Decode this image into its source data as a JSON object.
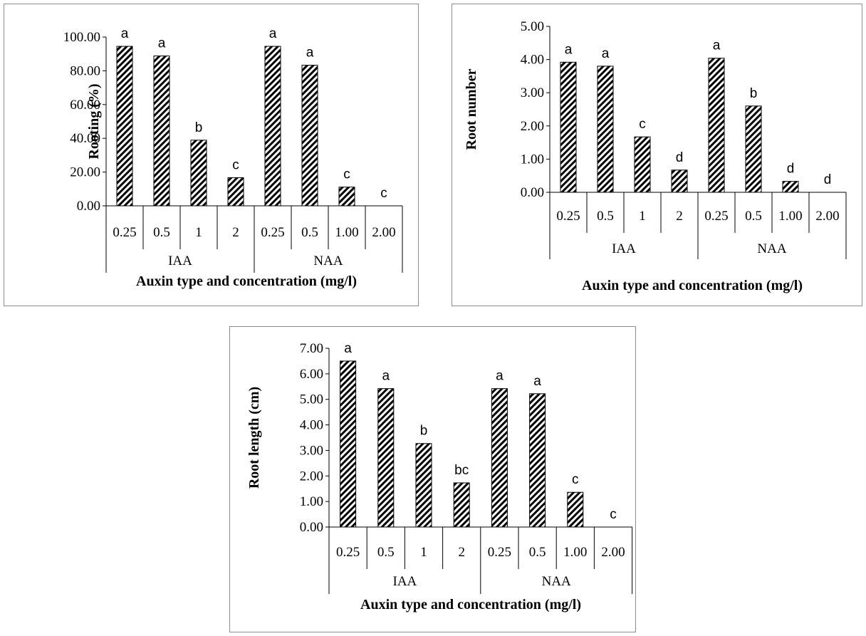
{
  "colors": {
    "bar_stroke": "#000000",
    "hatch": "#000000",
    "bar_fill": "#ffffff",
    "axis": "#000000",
    "frame": "#8c8c8c"
  },
  "chart_data": [
    {
      "type": "bar",
      "ylabel": "Rooting (%)",
      "xlabel": "Auxin type and concentration (mg/l)",
      "ylim": [
        0,
        100
      ],
      "yticks": [
        "0.00",
        "20.00",
        "40.00",
        "60.00",
        "80.00",
        "100.00"
      ],
      "tick_values": [
        0,
        20,
        40,
        60,
        80,
        100
      ],
      "categories": [
        "0.25",
        "0.5",
        "1",
        "2",
        "0.25",
        "0.5",
        "1.00",
        "2.00"
      ],
      "groups": [
        {
          "label": "IAA",
          "count": 4
        },
        {
          "label": "NAA",
          "count": 4
        }
      ],
      "values": [
        94.5,
        88.8,
        38.9,
        16.7,
        94.5,
        83.3,
        11.1,
        0
      ],
      "letters": [
        "a",
        "a",
        "b",
        "c",
        "a",
        "a",
        "c",
        "c"
      ],
      "grid": false,
      "legend": "none"
    },
    {
      "type": "bar",
      "ylabel": "Root number",
      "xlabel": "Auxin type and concentration (mg/l)",
      "ylim": [
        0,
        5
      ],
      "yticks": [
        "0.00",
        "1.00",
        "2.00",
        "3.00",
        "4.00",
        "5.00"
      ],
      "tick_values": [
        0,
        1,
        2,
        3,
        4,
        5
      ],
      "categories": [
        "0.25",
        "0.5",
        "1",
        "2",
        "0.25",
        "0.5",
        "1.00",
        "2.00"
      ],
      "groups": [
        {
          "label": "IAA",
          "count": 4
        },
        {
          "label": "NAA",
          "count": 4
        }
      ],
      "values": [
        3.92,
        3.8,
        1.67,
        0.67,
        4.04,
        2.6,
        0.33,
        0
      ],
      "letters": [
        "a",
        "a",
        "c",
        "d",
        "a",
        "b",
        "d",
        "d"
      ],
      "grid": false,
      "legend": "none"
    },
    {
      "type": "bar",
      "ylabel": "Root length (cm)",
      "xlabel": "Auxin type and concentration (mg/l)",
      "ylim": [
        0,
        7
      ],
      "yticks": [
        "0.00",
        "1.00",
        "2.00",
        "3.00",
        "4.00",
        "5.00",
        "6.00",
        "7.00"
      ],
      "tick_values": [
        0,
        1,
        2,
        3,
        4,
        5,
        6,
        7
      ],
      "categories": [
        "0.25",
        "0.5",
        "1",
        "2",
        "0.25",
        "0.5",
        "1.00",
        "2.00"
      ],
      "groups": [
        {
          "label": "IAA",
          "count": 4
        },
        {
          "label": "NAA",
          "count": 4
        }
      ],
      "values": [
        6.5,
        5.42,
        3.27,
        1.73,
        5.42,
        5.22,
        1.36,
        0
      ],
      "letters": [
        "a",
        "a",
        "b",
        "bc",
        "a",
        "a",
        "c",
        "c"
      ],
      "grid": false,
      "legend": "none"
    }
  ]
}
